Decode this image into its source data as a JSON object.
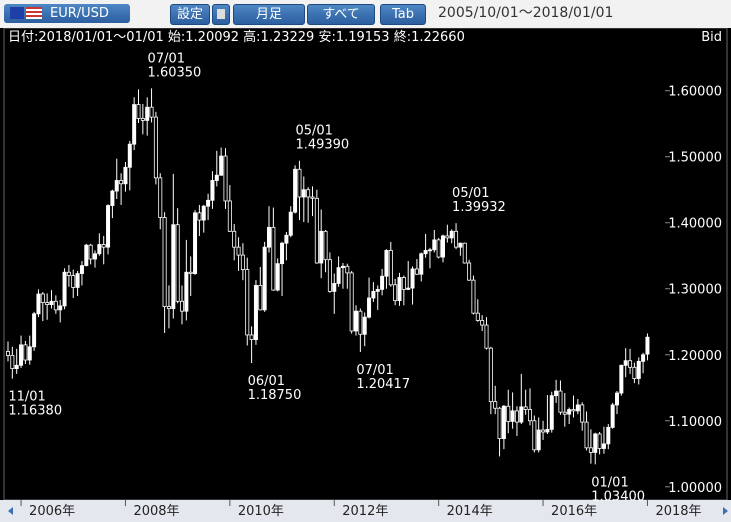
{
  "ui": {
    "pair": "EUR/USD",
    "buttons": [
      "設定",
      "月足",
      "すべて",
      "Tab"
    ],
    "range": "2005/10/01～2018/01/01",
    "info": "日付:2018/01/01～01/01 始:1.20092 高:1.23229 安:1.19153 終:1.22660",
    "side": "Bid"
  },
  "chart_data": {
    "type": "candlestick",
    "categories": [
      "2005/10",
      "2005/11",
      "2005/12",
      "2006/01",
      "2006/02",
      "2006/03",
      "2006/04",
      "2006/05",
      "2006/06",
      "2006/07",
      "2006/08",
      "2006/09",
      "2006/10",
      "2006/11",
      "2006/12",
      "2007/01",
      "2007/02",
      "2007/03",
      "2007/04",
      "2007/05",
      "2007/06",
      "2007/07",
      "2007/08",
      "2007/09",
      "2007/10",
      "2007/11",
      "2007/12",
      "2008/01",
      "2008/02",
      "2008/03",
      "2008/04",
      "2008/05",
      "2008/06",
      "2008/07",
      "2008/08",
      "2008/09",
      "2008/10",
      "2008/11",
      "2008/12",
      "2009/01",
      "2009/02",
      "2009/03",
      "2009/04",
      "2009/05",
      "2009/06",
      "2009/07",
      "2009/08",
      "2009/09",
      "2009/10",
      "2009/11",
      "2009/12",
      "2010/01",
      "2010/02",
      "2010/03",
      "2010/04",
      "2010/05",
      "2010/06",
      "2010/07",
      "2010/08",
      "2010/09",
      "2010/10",
      "2010/11",
      "2010/12",
      "2011/01",
      "2011/02",
      "2011/03",
      "2011/04",
      "2011/05",
      "2011/06",
      "2011/07",
      "2011/08",
      "2011/09",
      "2011/10",
      "2011/11",
      "2011/12",
      "2012/01",
      "2012/02",
      "2012/03",
      "2012/04",
      "2012/05",
      "2012/06",
      "2012/07",
      "2012/08",
      "2012/09",
      "2012/10",
      "2012/11",
      "2012/12",
      "2013/01",
      "2013/02",
      "2013/03",
      "2013/04",
      "2013/05",
      "2013/06",
      "2013/07",
      "2013/08",
      "2013/09",
      "2013/10",
      "2013/11",
      "2013/12",
      "2014/01",
      "2014/02",
      "2014/03",
      "2014/04",
      "2014/05",
      "2014/06",
      "2014/07",
      "2014/08",
      "2014/09",
      "2014/10",
      "2014/11",
      "2014/12",
      "2015/01",
      "2015/02",
      "2015/03",
      "2015/04",
      "2015/05",
      "2015/06",
      "2015/07",
      "2015/08",
      "2015/09",
      "2015/10",
      "2015/11",
      "2015/12",
      "2016/01",
      "2016/02",
      "2016/03",
      "2016/04",
      "2016/05",
      "2016/06",
      "2016/07",
      "2016/08",
      "2016/09",
      "2016/10",
      "2016/11",
      "2016/12",
      "2017/01",
      "2017/02",
      "2017/03",
      "2017/04",
      "2017/05",
      "2017/06",
      "2017/07",
      "2017/08",
      "2017/09",
      "2017/10",
      "2017/11",
      "2017/12",
      "2018/01"
    ],
    "open": [
      1.205,
      1.199,
      1.179,
      1.184,
      1.215,
      1.192,
      1.212,
      1.262,
      1.292,
      1.279,
      1.276,
      1.281,
      1.268,
      1.274,
      1.325,
      1.32,
      1.302,
      1.323,
      1.335,
      1.366,
      1.345,
      1.353,
      1.367,
      1.363,
      1.426,
      1.448,
      1.464,
      1.459,
      1.484,
      1.519,
      1.579,
      1.558,
      1.555,
      1.575,
      1.56,
      1.468,
      1.408,
      1.273,
      1.27,
      1.397,
      1.281,
      1.266,
      1.325,
      1.323,
      1.415,
      1.404,
      1.425,
      1.434,
      1.464,
      1.472,
      1.501,
      1.433,
      1.387,
      1.363,
      1.351,
      1.329,
      1.23,
      1.223,
      1.305,
      1.268,
      1.363,
      1.393,
      1.298,
      1.338,
      1.369,
      1.381,
      1.416,
      1.481,
      1.439,
      1.45,
      1.439,
      1.437,
      1.339,
      1.387,
      1.344,
      1.296,
      1.308,
      1.332,
      1.334,
      1.324,
      1.236,
      1.266,
      1.231,
      1.257,
      1.286,
      1.296,
      1.299,
      1.319,
      1.358,
      1.306,
      1.282,
      1.317,
      1.299,
      1.301,
      1.33,
      1.322,
      1.353,
      1.358,
      1.359,
      1.374,
      1.348,
      1.38,
      1.377,
      1.387,
      1.363,
      1.369,
      1.339,
      1.313,
      1.263,
      1.252,
      1.245,
      1.21,
      1.129,
      1.119,
      1.073,
      1.122,
      1.099,
      1.115,
      1.098,
      1.121,
      1.117,
      1.1,
      1.056,
      1.086,
      1.083,
      1.087,
      1.138,
      1.145,
      1.113,
      1.11,
      1.117,
      1.115,
      1.124,
      1.098,
      1.059,
      1.052,
      1.08,
      1.058,
      1.065,
      1.09,
      1.124,
      1.142,
      1.184,
      1.191,
      1.181,
      1.164,
      1.19,
      1.20092
    ],
    "high": [
      1.22,
      1.212,
      1.209,
      1.229,
      1.221,
      1.229,
      1.265,
      1.299,
      1.295,
      1.293,
      1.298,
      1.29,
      1.283,
      1.331,
      1.336,
      1.329,
      1.327,
      1.342,
      1.368,
      1.368,
      1.358,
      1.384,
      1.38,
      1.428,
      1.45,
      1.497,
      1.475,
      1.492,
      1.524,
      1.59,
      1.602,
      1.58,
      1.59,
      1.6035,
      1.568,
      1.475,
      1.416,
      1.305,
      1.474,
      1.422,
      1.305,
      1.374,
      1.349,
      1.419,
      1.427,
      1.427,
      1.444,
      1.478,
      1.509,
      1.514,
      1.513,
      1.457,
      1.398,
      1.378,
      1.369,
      1.347,
      1.243,
      1.313,
      1.333,
      1.371,
      1.425,
      1.423,
      1.346,
      1.371,
      1.386,
      1.425,
      1.487,
      1.4939,
      1.47,
      1.454,
      1.455,
      1.45,
      1.42,
      1.389,
      1.355,
      1.323,
      1.349,
      1.339,
      1.338,
      1.327,
      1.275,
      1.27,
      1.264,
      1.317,
      1.31,
      1.305,
      1.33,
      1.36,
      1.371,
      1.315,
      1.324,
      1.32,
      1.342,
      1.334,
      1.345,
      1.355,
      1.383,
      1.362,
      1.389,
      1.377,
      1.382,
      1.397,
      1.39,
      1.39932,
      1.37,
      1.37,
      1.344,
      1.32,
      1.284,
      1.26,
      1.257,
      1.212,
      1.153,
      1.121,
      1.124,
      1.147,
      1.143,
      1.122,
      1.171,
      1.147,
      1.149,
      1.108,
      1.105,
      1.1,
      1.139,
      1.144,
      1.162,
      1.161,
      1.142,
      1.12,
      1.138,
      1.133,
      1.128,
      1.114,
      1.087,
      1.082,
      1.083,
      1.091,
      1.095,
      1.127,
      1.145,
      1.185,
      1.21,
      1.209,
      1.188,
      1.196,
      1.203,
      1.23229
    ],
    "low": [
      1.19,
      1.1638,
      1.171,
      1.18,
      1.186,
      1.185,
      1.206,
      1.257,
      1.251,
      1.253,
      1.27,
      1.262,
      1.249,
      1.269,
      1.303,
      1.286,
      1.289,
      1.305,
      1.334,
      1.337,
      1.332,
      1.35,
      1.337,
      1.352,
      1.407,
      1.436,
      1.427,
      1.447,
      1.449,
      1.51,
      1.551,
      1.534,
      1.532,
      1.552,
      1.458,
      1.39,
      1.233,
      1.24,
      1.255,
      1.278,
      1.246,
      1.252,
      1.289,
      1.321,
      1.38,
      1.385,
      1.404,
      1.421,
      1.455,
      1.471,
      1.421,
      1.386,
      1.343,
      1.327,
      1.313,
      1.214,
      1.1875,
      1.215,
      1.267,
      1.265,
      1.355,
      1.297,
      1.296,
      1.289,
      1.343,
      1.378,
      1.414,
      1.404,
      1.401,
      1.4,
      1.41,
      1.338,
      1.316,
      1.325,
      1.294,
      1.262,
      1.303,
      1.3,
      1.3,
      1.232,
      1.229,
      1.20417,
      1.213,
      1.255,
      1.28,
      1.268,
      1.29,
      1.3,
      1.303,
      1.275,
      1.274,
      1.275,
      1.298,
      1.276,
      1.321,
      1.311,
      1.347,
      1.331,
      1.355,
      1.346,
      1.34,
      1.37,
      1.369,
      1.36,
      1.35,
      1.338,
      1.312,
      1.261,
      1.25,
      1.236,
      1.208,
      1.11,
      1.11,
      1.046,
      1.057,
      1.081,
      1.088,
      1.077,
      1.095,
      1.109,
      1.093,
      1.052,
      1.052,
      1.071,
      1.08,
      1.082,
      1.127,
      1.109,
      1.091,
      1.095,
      1.105,
      1.11,
      1.085,
      1.055,
      1.035,
      1.034,
      1.049,
      1.05,
      1.057,
      1.088,
      1.11,
      1.138,
      1.166,
      1.171,
      1.157,
      1.155,
      1.172,
      1.19153
    ],
    "close": [
      1.199,
      1.179,
      1.184,
      1.215,
      1.192,
      1.212,
      1.262,
      1.292,
      1.279,
      1.276,
      1.281,
      1.268,
      1.274,
      1.325,
      1.32,
      1.302,
      1.323,
      1.335,
      1.366,
      1.345,
      1.353,
      1.367,
      1.363,
      1.426,
      1.448,
      1.464,
      1.459,
      1.484,
      1.519,
      1.579,
      1.558,
      1.555,
      1.575,
      1.56,
      1.468,
      1.408,
      1.273,
      1.27,
      1.397,
      1.281,
      1.266,
      1.325,
      1.323,
      1.415,
      1.404,
      1.425,
      1.434,
      1.464,
      1.472,
      1.501,
      1.433,
      1.387,
      1.363,
      1.351,
      1.329,
      1.23,
      1.223,
      1.305,
      1.268,
      1.363,
      1.393,
      1.298,
      1.338,
      1.369,
      1.381,
      1.416,
      1.481,
      1.439,
      1.45,
      1.439,
      1.437,
      1.339,
      1.387,
      1.344,
      1.296,
      1.308,
      1.332,
      1.334,
      1.324,
      1.236,
      1.266,
      1.231,
      1.257,
      1.286,
      1.296,
      1.299,
      1.319,
      1.358,
      1.306,
      1.282,
      1.317,
      1.299,
      1.301,
      1.33,
      1.322,
      1.353,
      1.358,
      1.359,
      1.374,
      1.348,
      1.38,
      1.377,
      1.387,
      1.363,
      1.369,
      1.339,
      1.313,
      1.263,
      1.252,
      1.245,
      1.21,
      1.129,
      1.119,
      1.073,
      1.122,
      1.099,
      1.115,
      1.098,
      1.121,
      1.117,
      1.1,
      1.056,
      1.086,
      1.083,
      1.087,
      1.138,
      1.145,
      1.113,
      1.11,
      1.117,
      1.115,
      1.124,
      1.098,
      1.059,
      1.052,
      1.08,
      1.058,
      1.065,
      1.09,
      1.124,
      1.142,
      1.184,
      1.191,
      1.181,
      1.164,
      1.19,
      1.2,
      1.2266
    ],
    "ylim": [
      0.983,
      1.695
    ],
    "yticks": [
      {
        "value": 1.0,
        "label": "1.00000"
      },
      {
        "value": 1.1,
        "label": "1.10000"
      },
      {
        "value": 1.2,
        "label": "1.20000"
      },
      {
        "value": 1.3,
        "label": "1.30000"
      },
      {
        "value": 1.4,
        "label": "1.40000"
      },
      {
        "value": 1.5,
        "label": "1.50000"
      },
      {
        "value": 1.6,
        "label": "1.60000"
      }
    ],
    "xticks": [
      {
        "value": "2006/01",
        "label": "2006年"
      },
      {
        "value": "2008/01",
        "label": "2008年"
      },
      {
        "value": "2010/01",
        "label": "2010年"
      },
      {
        "value": "2012/01",
        "label": "2012年"
      },
      {
        "value": "2014/01",
        "label": "2014年"
      },
      {
        "value": "2016/01",
        "label": "2016年"
      },
      {
        "value": "2018/01",
        "label": "2018年"
      }
    ],
    "annotations": [
      {
        "at": "2005/11",
        "side": "low",
        "date": "11/01",
        "price": "1.16380"
      },
      {
        "at": "2008/07",
        "side": "high",
        "date": "07/01",
        "price": "1.60350"
      },
      {
        "at": "2010/06",
        "side": "low",
        "date": "06/01",
        "price": "1.18750"
      },
      {
        "at": "2011/05",
        "side": "high",
        "date": "05/01",
        "price": "1.49390"
      },
      {
        "at": "2012/07",
        "side": "low",
        "date": "07/01",
        "price": "1.20417"
      },
      {
        "at": "2014/05",
        "side": "high",
        "date": "05/01",
        "price": "1.39932"
      },
      {
        "at": "2017/01",
        "side": "low",
        "date": "01/01",
        "price": "1.03400"
      }
    ],
    "color": "#ffffff"
  }
}
